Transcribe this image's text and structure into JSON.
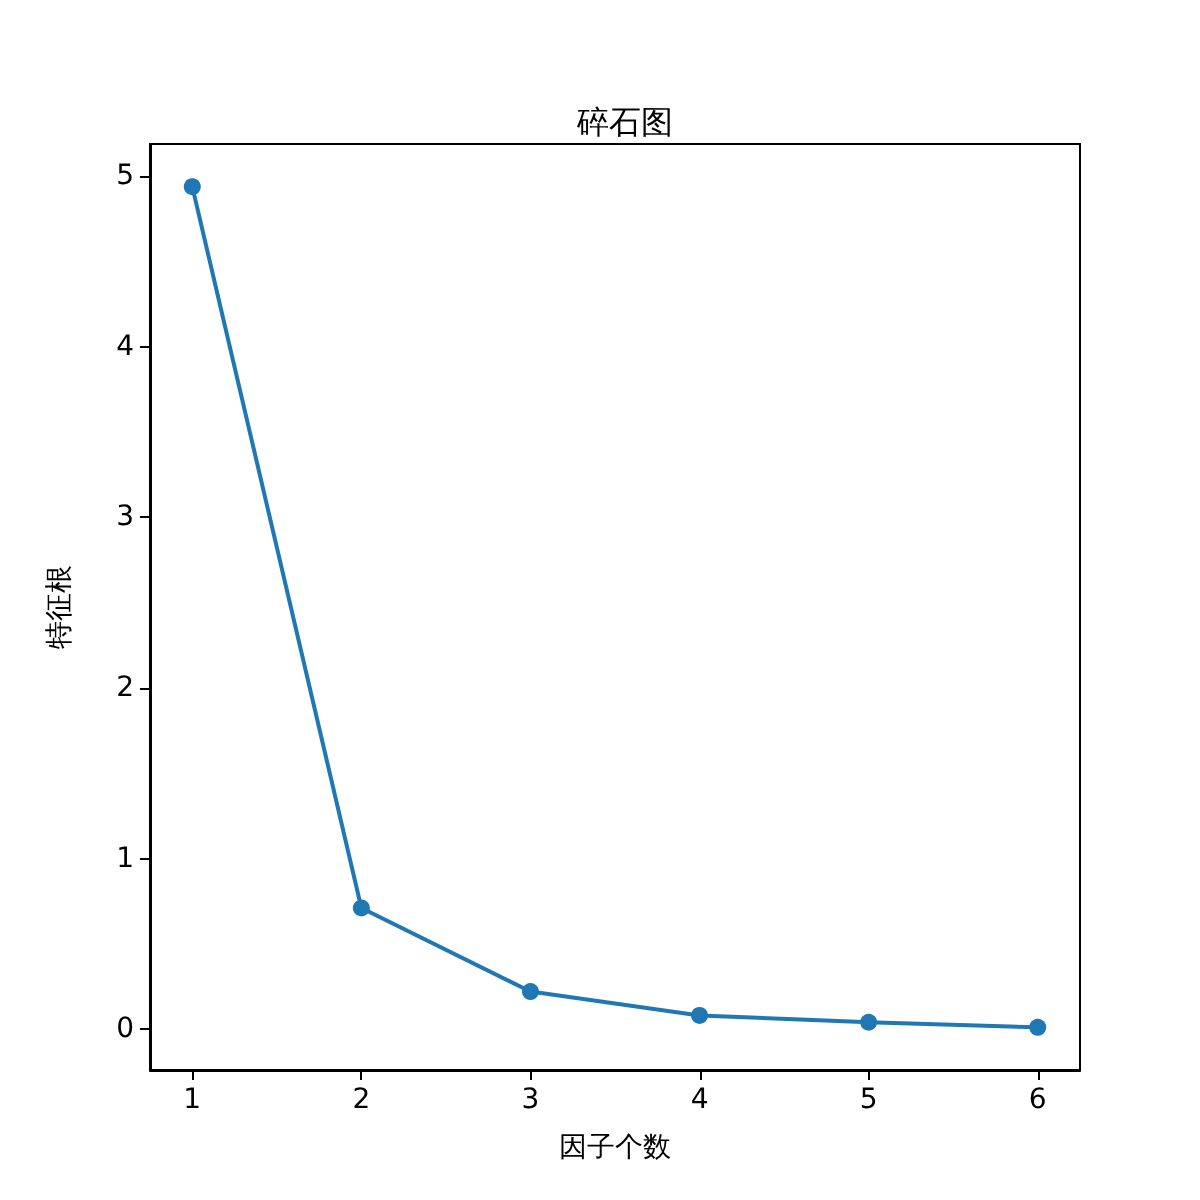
{
  "chart_data": {
    "type": "line",
    "title": "碎石图",
    "xlabel": "因子个数",
    "ylabel": "特征根",
    "x": [
      1,
      2,
      3,
      4,
      5,
      6
    ],
    "series": [
      {
        "color": "#1f77b4",
        "values": [
          4.94,
          0.71,
          0.22,
          0.08,
          0.04,
          0.01
        ]
      }
    ],
    "xlim": [
      0.75,
      6.25
    ],
    "xticks": [
      1,
      2,
      3,
      4,
      5,
      6
    ],
    "ylim": [
      -0.24,
      5.19
    ],
    "yticks": [
      0,
      1,
      2,
      3,
      4,
      5
    ],
    "marker": "circle",
    "line_style": "solid",
    "grid": false
  }
}
